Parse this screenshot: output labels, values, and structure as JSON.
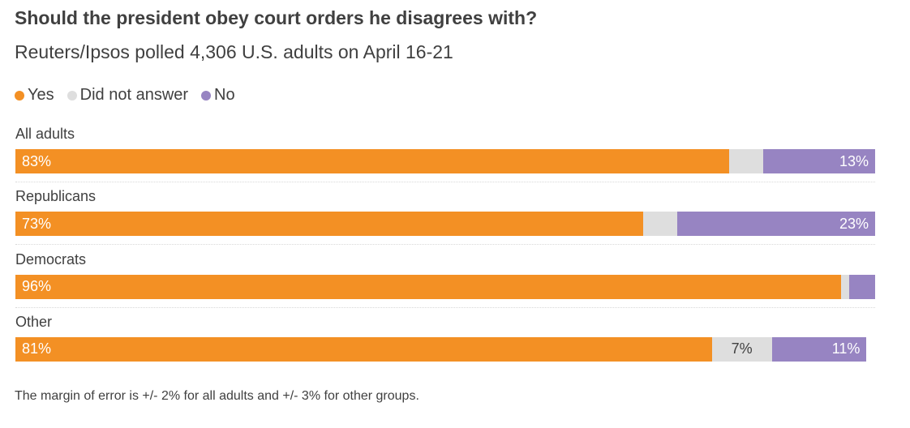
{
  "title": "Should the president obey court orders he disagrees with?",
  "subtitle": "Reuters/Ipsos polled 4,306 U.S. adults on April 16-21",
  "legend": [
    {
      "label": "Yes",
      "color": "#f39024"
    },
    {
      "label": "Did not answer",
      "color": "#dedede"
    },
    {
      "label": "No",
      "color": "#9784c2"
    }
  ],
  "footnote": "The margin of error is +/- 2% for all adults and +/- 3% for other groups.",
  "chart_data": {
    "type": "bar",
    "orientation": "horizontal",
    "stacked": true,
    "normalized_to": 100,
    "unit": "%",
    "categories": [
      "All adults",
      "Republicans",
      "Democrats",
      "Other"
    ],
    "series": [
      {
        "name": "Yes",
        "color": "#f39024",
        "values": [
          83,
          73,
          96,
          81
        ],
        "data_labels": [
          "83%",
          "73%",
          "96%",
          "81%"
        ]
      },
      {
        "name": "Did not answer",
        "color": "#dedede",
        "values": [
          4,
          4,
          1,
          7
        ],
        "data_labels": [
          "",
          "",
          "",
          "7%"
        ]
      },
      {
        "name": "No",
        "color": "#9784c2",
        "values": [
          13,
          23,
          3,
          11
        ],
        "data_labels": [
          "13%",
          "23%",
          "",
          "11%"
        ]
      }
    ],
    "title": "Should the president obey court orders he disagrees with?",
    "xlim": [
      0,
      100
    ],
    "grid": false,
    "legend_position": "top-left"
  }
}
